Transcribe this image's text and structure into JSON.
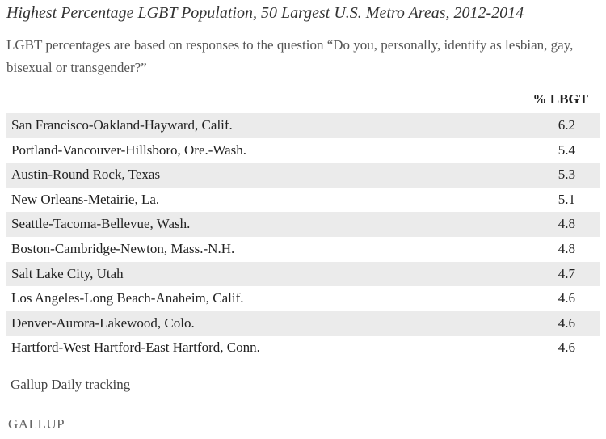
{
  "header": {
    "title": "Highest Percentage LGBT Population, 50 Largest U.S. Metro Areas, 2012-2014",
    "subtitle": "LGBT percentages are based on responses to the question “Do you, personally, identify as lesbian, gay, bisexual or transgender?”"
  },
  "table": {
    "columns": [
      "% LBGT"
    ],
    "rows": [
      [
        "San Francisco-Oakland-Hayward, Calif.",
        6.2
      ],
      [
        "Portland-Vancouver-Hillsboro, Ore.-Wash.",
        5.4
      ],
      [
        "Austin-Round Rock, Texas",
        5.3
      ],
      [
        "New Orleans-Metairie, La.",
        5.1
      ],
      [
        "Seattle-Tacoma-Bellevue, Wash.",
        4.8
      ],
      [
        "Boston-Cambridge-Newton, Mass.-N.H.",
        4.8
      ],
      [
        "Salt Lake City, Utah",
        4.7
      ],
      [
        "Los Angeles-Long Beach-Anaheim, Calif.",
        4.6
      ],
      [
        "Denver-Aurora-Lakewood, Colo.",
        4.6
      ],
      [
        "Hartford-West Hartford-East Hartford, Conn.",
        4.6
      ]
    ]
  },
  "footer": {
    "source": "Gallup Daily tracking",
    "logo": "GALLUP"
  }
}
